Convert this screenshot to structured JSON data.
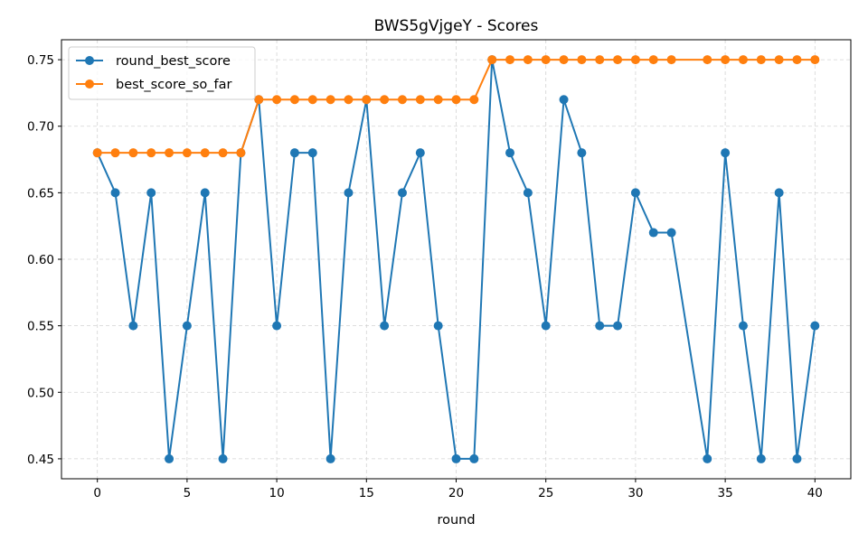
{
  "chart_data": {
    "type": "line",
    "title": "BWS5gVjgeY - Scores",
    "xlabel": "round",
    "ylabel": "",
    "xlim": [
      -2,
      42
    ],
    "ylim": [
      0.435,
      0.765
    ],
    "x_ticks": [
      0,
      5,
      10,
      15,
      20,
      25,
      30,
      35,
      40
    ],
    "y_ticks": [
      0.45,
      0.5,
      0.55,
      0.6,
      0.65,
      0.7,
      0.75
    ],
    "y_tick_labels": [
      "0.45",
      "0.50",
      "0.55",
      "0.60",
      "0.65",
      "0.70",
      "0.75"
    ],
    "grid": true,
    "legend_position": "top-left",
    "series": [
      {
        "name": "round_best_score",
        "color": "#1f77b4",
        "x": [
          0,
          1,
          2,
          3,
          4,
          5,
          6,
          7,
          8,
          9,
          10,
          11,
          12,
          13,
          14,
          15,
          16,
          17,
          18,
          19,
          20,
          21,
          22,
          23,
          24,
          25,
          26,
          27,
          28,
          29,
          30,
          31,
          32,
          34,
          35,
          36,
          37,
          38,
          39,
          40
        ],
        "y": [
          0.68,
          0.65,
          0.55,
          0.65,
          0.45,
          0.55,
          0.65,
          0.45,
          0.68,
          0.72,
          0.55,
          0.68,
          0.68,
          0.45,
          0.65,
          0.72,
          0.55,
          0.65,
          0.68,
          0.55,
          0.45,
          0.45,
          0.75,
          0.68,
          0.65,
          0.55,
          0.72,
          0.68,
          0.55,
          0.55,
          0.65,
          0.62,
          0.62,
          0.45,
          0.68,
          0.55,
          0.45,
          0.65,
          0.45,
          0.55
        ]
      },
      {
        "name": "best_score_so_far",
        "color": "#ff7f0e",
        "x": [
          0,
          1,
          2,
          3,
          4,
          5,
          6,
          7,
          8,
          9,
          10,
          11,
          12,
          13,
          14,
          15,
          16,
          17,
          18,
          19,
          20,
          21,
          22,
          23,
          24,
          25,
          26,
          27,
          28,
          29,
          30,
          31,
          32,
          34,
          35,
          36,
          37,
          38,
          39,
          40
        ],
        "y": [
          0.68,
          0.68,
          0.68,
          0.68,
          0.68,
          0.68,
          0.68,
          0.68,
          0.68,
          0.72,
          0.72,
          0.72,
          0.72,
          0.72,
          0.72,
          0.72,
          0.72,
          0.72,
          0.72,
          0.72,
          0.72,
          0.72,
          0.75,
          0.75,
          0.75,
          0.75,
          0.75,
          0.75,
          0.75,
          0.75,
          0.75,
          0.75,
          0.75,
          0.75,
          0.75,
          0.75,
          0.75,
          0.75,
          0.75,
          0.75
        ]
      }
    ]
  }
}
